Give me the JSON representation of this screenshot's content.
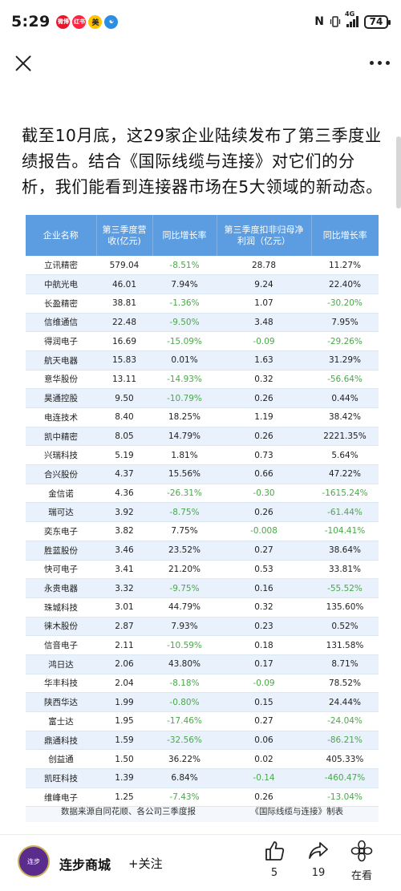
{
  "status_bar": {
    "time": "5:29",
    "app_icons": [
      "微博",
      "红书",
      "美",
      "☯"
    ],
    "network": "4G",
    "battery": "74"
  },
  "article": {
    "text": "截至10月底，这29家企业陆续发布了第三季度业绩报告。结合《国际线缆与连接》对它们的分析，我们能看到连接器市场在5大领域的新动态。"
  },
  "table": {
    "headers": [
      "企业名称",
      "第三季度营收(亿元)",
      "同比增长率",
      "第三季度扣非归母净利润（亿元）",
      "同比增长率"
    ],
    "rows": [
      [
        "立讯精密",
        "579.04",
        "-8.51%",
        "28.78",
        "11.27%"
      ],
      [
        "中航光电",
        "46.01",
        "7.94%",
        "9.24",
        "22.40%"
      ],
      [
        "长盈精密",
        "38.81",
        "-1.36%",
        "1.07",
        "-30.20%"
      ],
      [
        "信维通信",
        "22.48",
        "-9.50%",
        "3.48",
        "7.95%"
      ],
      [
        "得润电子",
        "16.69",
        "-15.09%",
        "-0.09",
        "-29.26%"
      ],
      [
        "航天电器",
        "15.83",
        "0.01%",
        "1.63",
        "31.29%"
      ],
      [
        "意华股份",
        "13.11",
        "-14.93%",
        "0.32",
        "-56.64%"
      ],
      [
        "昊通控股",
        "9.50",
        "-10.79%",
        "0.26",
        "0.44%"
      ],
      [
        "电连技术",
        "8.40",
        "18.25%",
        "1.19",
        "38.42%"
      ],
      [
        "凯中精密",
        "8.05",
        "14.79%",
        "0.26",
        "2221.35%"
      ],
      [
        "兴瑞科技",
        "5.19",
        "1.81%",
        "0.73",
        "5.64%"
      ],
      [
        "合兴股份",
        "4.37",
        "15.56%",
        "0.66",
        "47.22%"
      ],
      [
        "金信诺",
        "4.36",
        "-26.31%",
        "-0.30",
        "-1615.24%"
      ],
      [
        "瑞可达",
        "3.92",
        "-8.75%",
        "0.26",
        "-61.44%"
      ],
      [
        "奕东电子",
        "3.82",
        "7.75%",
        "-0.008",
        "-104.41%"
      ],
      [
        "胜蓝股份",
        "3.46",
        "23.52%",
        "0.27",
        "38.64%"
      ],
      [
        "快可电子",
        "3.41",
        "21.20%",
        "0.53",
        "33.81%"
      ],
      [
        "永贵电器",
        "3.32",
        "-9.75%",
        "0.16",
        "-55.52%"
      ],
      [
        "珠城科技",
        "3.01",
        "44.79%",
        "0.32",
        "135.60%"
      ],
      [
        "徕木股份",
        "2.87",
        "7.93%",
        "0.23",
        "0.52%"
      ],
      [
        "信音电子",
        "2.11",
        "-10.59%",
        "0.18",
        "131.58%"
      ],
      [
        "鸿日达",
        "2.06",
        "43.80%",
        "0.17",
        "8.71%"
      ],
      [
        "华丰科技",
        "2.04",
        "-8.18%",
        "-0.09",
        "78.52%"
      ],
      [
        "陕西华达",
        "1.99",
        "-0.80%",
        "0.15",
        "24.44%"
      ],
      [
        "富士达",
        "1.95",
        "-17.46%",
        "0.27",
        "-24.04%"
      ],
      [
        "鼎通科技",
        "1.59",
        "-32.56%",
        "0.06",
        "-86.21%"
      ],
      [
        "创益通",
        "1.50",
        "36.22%",
        "0.02",
        "405.33%"
      ],
      [
        "凯旺科技",
        "1.39",
        "6.84%",
        "-0.14",
        "-460.47%"
      ],
      [
        "维峰电子",
        "1.25",
        "-7.43%",
        "0.26",
        "-13.04%"
      ]
    ],
    "footer_left": "数据来源自同花顺、各公司三季度报",
    "footer_right": "《国际线缆与连接》制表"
  },
  "bottom_bar": {
    "avatar_text": "连步",
    "author_name": "连步商城",
    "follow_label": "+关注",
    "like_count": "5",
    "share_count": "19",
    "watching_label": "在看"
  },
  "colors": {
    "table_header": "#5c9ce0",
    "negative": "#4aa84a",
    "row_alt": "#e8f1fc"
  }
}
